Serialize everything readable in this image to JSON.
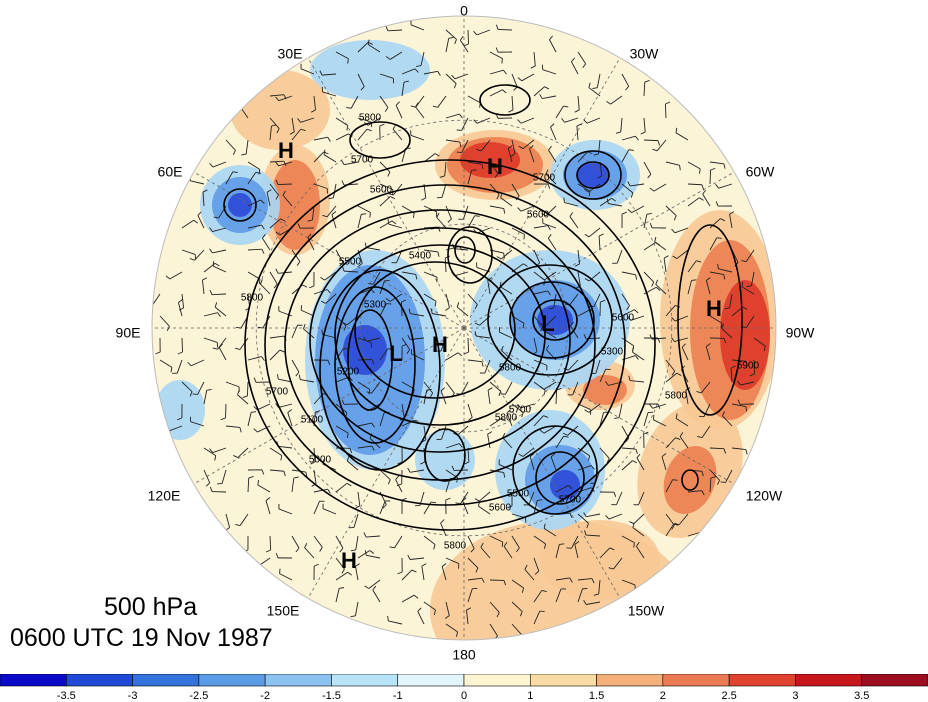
{
  "map": {
    "projection": "north polar stereographic",
    "longitude_labels": [
      "0",
      "30W",
      "60W",
      "90W",
      "120W",
      "150W",
      "180",
      "150E",
      "120E",
      "90E",
      "60E",
      "30E"
    ],
    "highs": [
      "H",
      "H",
      "H",
      "H",
      "H"
    ],
    "lows": [
      "L",
      "L"
    ],
    "contour_labels": [
      "5800",
      "5700",
      "5600",
      "5500",
      "5400",
      "5300",
      "5200",
      "5100",
      "5000",
      "5600",
      "5700",
      "5800",
      "5900",
      "5800",
      "5500",
      "5600",
      "5700",
      "5800",
      "5300",
      "5800",
      "5600",
      "5700",
      "5800",
      "5700"
    ],
    "fill_colors": {
      "strong_negative": "#2d49d8",
      "negative": "#5f9ae8",
      "weak_negative": "#a9d6f5",
      "neutral": "#fbf4d7",
      "weak_positive": "#f8c995",
      "positive": "#ec8050",
      "strong_positive": "#dd3a2a"
    },
    "wind_barbs": "shown",
    "graticule": "dashed"
  },
  "title": {
    "level": "500 hPa",
    "time": "0600 UTC 19 Nov 1987"
  },
  "colorbar": {
    "labels": [
      "-3.5",
      "-3",
      "-2.5",
      "-2",
      "-1.5",
      "-1",
      "0",
      "1",
      "1.5",
      "2",
      "2.5",
      "3",
      "3.5"
    ],
    "colors": [
      "#0a0ac8",
      "#1f49d6",
      "#3473dc",
      "#5b9be6",
      "#8cc2f2",
      "#b8e4f8",
      "#e2f5fb",
      "#fdf5d2",
      "#f9dba6",
      "#f4b07a",
      "#ec7a52",
      "#e0432f",
      "#c8161d",
      "#9b0d1f"
    ]
  }
}
